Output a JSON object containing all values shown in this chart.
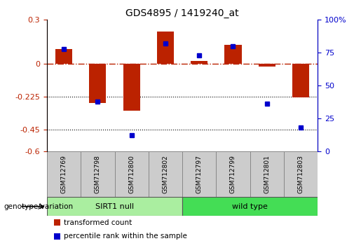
{
  "title": "GDS4895 / 1419240_at",
  "samples": [
    "GSM712769",
    "GSM712798",
    "GSM712800",
    "GSM712802",
    "GSM712797",
    "GSM712799",
    "GSM712801",
    "GSM712803"
  ],
  "red_values": [
    0.1,
    -0.27,
    -0.32,
    0.22,
    0.02,
    0.13,
    -0.02,
    -0.23
  ],
  "blue_values": [
    78,
    38,
    12,
    82,
    73,
    80,
    36,
    18
  ],
  "groups": [
    {
      "label": "SIRT1 null",
      "start": 0,
      "end": 4,
      "color": "#AAEEA0"
    },
    {
      "label": "wild type",
      "start": 4,
      "end": 8,
      "color": "#44DD55"
    }
  ],
  "group_label": "genotype/variation",
  "ylim_left": [
    -0.6,
    0.3
  ],
  "ylim_right": [
    0,
    100
  ],
  "yticks_left": [
    -0.6,
    -0.45,
    -0.225,
    0.0,
    0.3
  ],
  "yticks_right": [
    0,
    25,
    50,
    75,
    100
  ],
  "hlines_dotted": [
    -0.225,
    -0.45
  ],
  "zero_line": 0.0,
  "red_color": "#BB2200",
  "blue_color": "#0000CC",
  "legend_red": "transformed count",
  "legend_blue": "percentile rank within the sample",
  "bar_width": 0.5,
  "background_color": "#ffffff"
}
